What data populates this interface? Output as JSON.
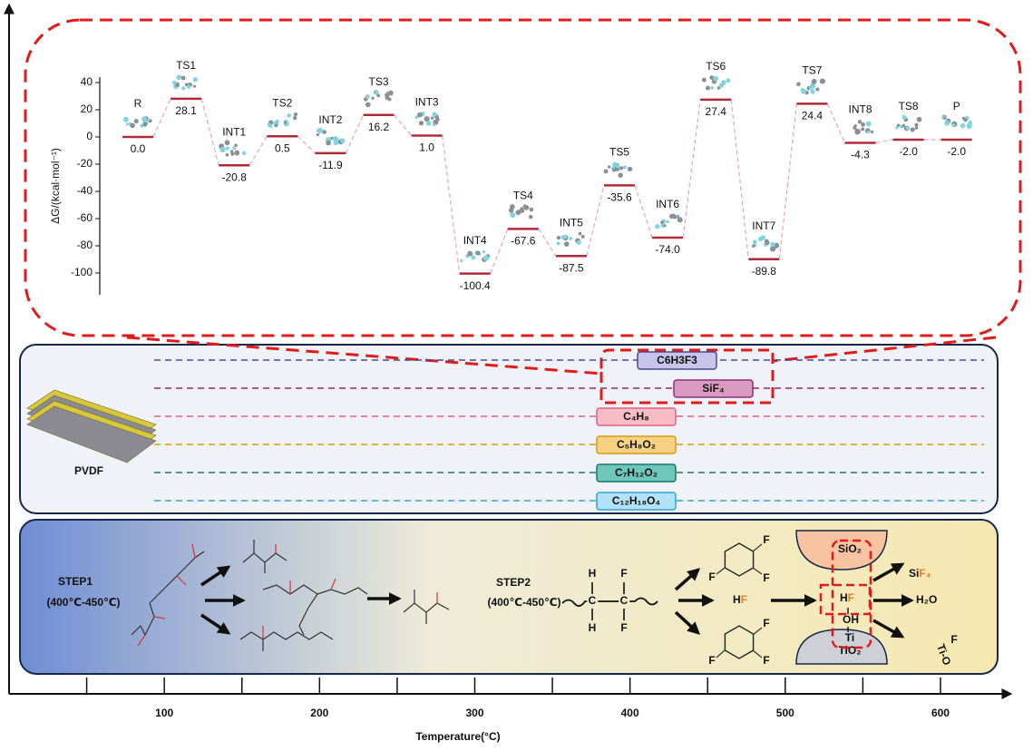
{
  "chart_data": [
    {
      "type": "energy-levels",
      "ylabel": "ΔG/(kcal·mol⁻¹)",
      "categories": [
        "R",
        "TS1",
        "INT1",
        "TS2",
        "INT2",
        "TS3",
        "INT3",
        "INT4",
        "TS4",
        "INT5",
        "TS5",
        "INT6",
        "TS6",
        "INT7",
        "TS7",
        "INT8",
        "TS8",
        "P"
      ],
      "values": [
        0.0,
        28.1,
        -20.8,
        0.5,
        -11.9,
        16.2,
        1.0,
        -100.4,
        -67.6,
        -87.5,
        -35.6,
        -74.0,
        27.4,
        -89.8,
        24.4,
        -4.3,
        -2.0,
        -2.0
      ],
      "value_labels": [
        "0.0",
        "28.1",
        "-20.8",
        "0.5",
        "-11.9",
        "16.2",
        "1.0",
        "-100.4",
        "-67.6",
        "-87.5",
        "-35.6",
        "-74.0",
        "27.4",
        "-89.8",
        "24.4",
        "-4.3",
        "-2.0",
        "-2.0"
      ],
      "ylim": [
        -116,
        44
      ],
      "yticks": [
        -100,
        -80,
        -60,
        -40,
        -20,
        0,
        20,
        40
      ],
      "color": "#b2293a",
      "connector_color": "#f2a3b3"
    },
    {
      "type": "axis",
      "xlabel": "Temperature(°C)",
      "xlim": [
        0,
        645
      ],
      "xticks": [
        100,
        200,
        300,
        400,
        500,
        600
      ],
      "xminorticks": [
        50,
        150,
        250,
        350,
        450,
        550
      ]
    }
  ],
  "pvdf_panel": {
    "label": "PVDF",
    "products": [
      {
        "name": "C6H3F3",
        "color": "#4b4b8f",
        "fill": "#c9c5ea"
      },
      {
        "name": "SiF₄",
        "color": "#8a2f77",
        "fill": "#d99ac2"
      },
      {
        "name": "C₄H₈",
        "color": "#e4607a",
        "fill": "#f7bcc6"
      },
      {
        "name": "C₅H₈O₂",
        "color": "#d99a14",
        "fill": "#f8d283"
      },
      {
        "name": "C₇H₁₂O₂",
        "color": "#15766a",
        "fill": "#6fc7b8"
      },
      {
        "name": "C₁₂H₁₈O₄",
        "color": "#2ba6d6",
        "fill": "#b3e1f5"
      }
    ]
  },
  "steps_panel": {
    "step1": "STEP1",
    "step1_temp": "(400℃-450℃)",
    "step2": "STEP2",
    "step2_temp": "(400℃-450℃)",
    "pvdf_atoms": [
      "H",
      "C",
      "H",
      "F",
      "C",
      "F"
    ],
    "ring_f": [
      "F",
      "F",
      "F",
      "F",
      "F",
      "F"
    ],
    "hf": [
      "H",
      "F"
    ],
    "sif4": [
      "Si",
      "F₄"
    ],
    "water": "H₂O",
    "sio2": "SiO₂",
    "surface_hf": [
      "H",
      "F"
    ],
    "oh": "OH",
    "ti": "Ti",
    "tio2": "TiO₂",
    "ti_o": "Ti-O",
    "ti_o_f": "F"
  }
}
